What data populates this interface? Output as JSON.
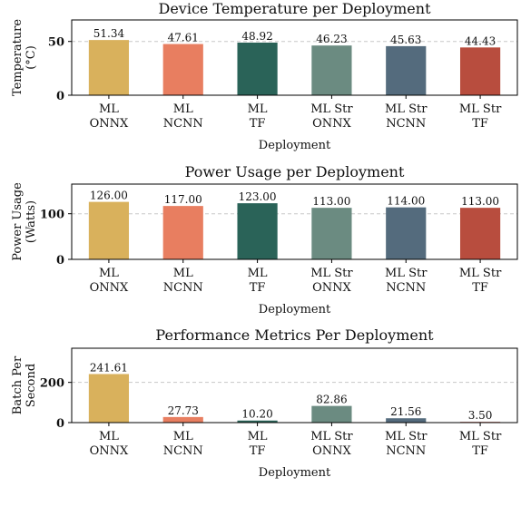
{
  "chart_data": [
    {
      "type": "bar",
      "title": "Device Temperature per Deployment",
      "xlabel": "Deployment",
      "ylabel": [
        "Temperature",
        "(°C)"
      ],
      "categories": [
        [
          "ML",
          "ONNX"
        ],
        [
          "ML",
          "NCNN"
        ],
        [
          "ML",
          "TF"
        ],
        [
          "ML Str",
          "ONNX"
        ],
        [
          "ML Str",
          "NCNN"
        ],
        [
          "ML Str",
          "TF"
        ]
      ],
      "values": [
        51.34,
        47.61,
        48.92,
        46.23,
        45.63,
        44.43
      ],
      "value_labels": [
        "51.34",
        "47.61",
        "48.92",
        "46.23",
        "45.63",
        "44.43"
      ],
      "yticks": [
        0,
        50
      ],
      "ylim": [
        0,
        70
      ],
      "grid": "horizontal dashed"
    },
    {
      "type": "bar",
      "title": "Power Usage per Deployment",
      "xlabel": "Deployment",
      "ylabel": [
        "Power Usage",
        "(Watts)"
      ],
      "categories": [
        [
          "ML",
          "ONNX"
        ],
        [
          "ML",
          "NCNN"
        ],
        [
          "ML",
          "TF"
        ],
        [
          "ML Str",
          "ONNX"
        ],
        [
          "ML Str",
          "NCNN"
        ],
        [
          "ML Str",
          "TF"
        ]
      ],
      "values": [
        126.0,
        117.0,
        123.0,
        113.0,
        114.0,
        113.0
      ],
      "value_labels": [
        "126.00",
        "117.00",
        "123.00",
        "113.00",
        "114.00",
        "113.00"
      ],
      "yticks": [
        0,
        100
      ],
      "ylim": [
        0,
        165
      ],
      "grid": "horizontal dashed"
    },
    {
      "type": "bar",
      "title": "Performance Metrics Per Deployment",
      "xlabel": "Deployment",
      "ylabel": [
        "Batch Per",
        "Second"
      ],
      "categories": [
        [
          "ML",
          "ONNX"
        ],
        [
          "ML",
          "NCNN"
        ],
        [
          "ML",
          "TF"
        ],
        [
          "ML Str",
          "ONNX"
        ],
        [
          "ML Str",
          "NCNN"
        ],
        [
          "ML Str",
          "TF"
        ]
      ],
      "values": [
        241.61,
        27.73,
        10.2,
        82.86,
        21.56,
        3.5
      ],
      "value_labels": [
        "241.61",
        "27.73",
        "10.20",
        "82.86",
        "21.56",
        "3.50"
      ],
      "yticks": [
        0,
        200
      ],
      "ylim": [
        0,
        370
      ],
      "grid": "horizontal dashed"
    }
  ],
  "colors": [
    "#d9b15c",
    "#e87e60",
    "#2a6358",
    "#6b8b81",
    "#546b7d",
    "#b84d3e"
  ]
}
